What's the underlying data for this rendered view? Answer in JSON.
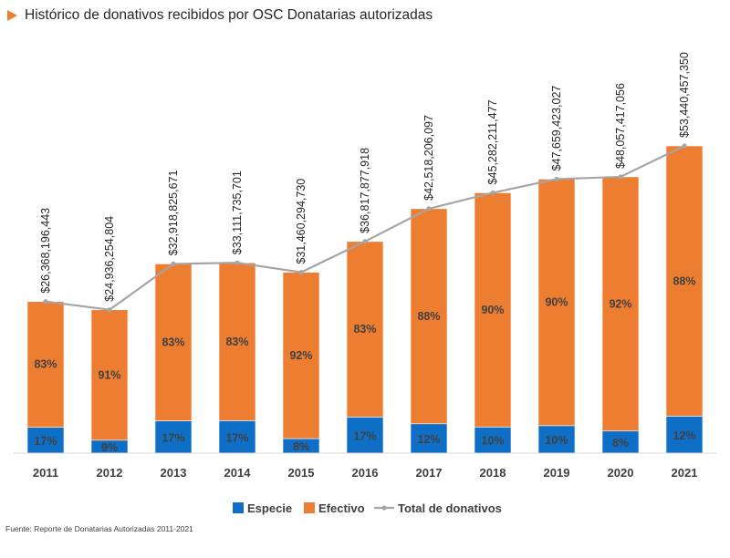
{
  "title": "Histórico de donativos recibidos por OSC Donatarias autorizadas",
  "source": "Fuente: Reporte de Donatarias Autorizadas 2011-2021",
  "colors": {
    "especie": "#0F6FC6",
    "efectivo": "#ED7D31",
    "total": "#A5A5A5",
    "marker": "#ED7D31"
  },
  "chart_data": {
    "type": "bar",
    "stacked": true,
    "title": "Histórico de donativos recibidos por OSC Donatarias autorizadas",
    "categories": [
      "2011",
      "2012",
      "2013",
      "2014",
      "2015",
      "2016",
      "2017",
      "2018",
      "2019",
      "2020",
      "2021"
    ],
    "series": [
      {
        "name": "Especie",
        "type": "bar",
        "values": [
          17,
          9,
          17,
          17,
          8,
          17,
          12,
          10,
          10,
          8,
          12
        ],
        "labels": [
          "17%",
          "9%",
          "17%",
          "17%",
          "8%",
          "17%",
          "12%",
          "10%",
          "10%",
          "8%",
          "12%"
        ]
      },
      {
        "name": "Efectivo",
        "type": "bar",
        "values": [
          83,
          91,
          83,
          83,
          92,
          83,
          88,
          90,
          90,
          92,
          88
        ],
        "labels": [
          "83%",
          "91%",
          "83%",
          "83%",
          "92%",
          "83%",
          "88%",
          "90%",
          "90%",
          "92%",
          "88%"
        ]
      },
      {
        "name": "Total de donativos",
        "type": "line",
        "values": [
          26368196443,
          24936254804,
          32918825671,
          33111735701,
          31460294730,
          36817877918,
          42518206097,
          45282211477,
          47659423027,
          48057417056,
          53440457350
        ],
        "labels": [
          "$26,368,196,443",
          "$24,936,254,804",
          "$32,918,825,671",
          "$33,111,735,701",
          "$31,460,294,730",
          "$36,817,877,918",
          "$42,518,206,097",
          "$45,282,211,477",
          "$47,659,423,027",
          "$48,057,417,056",
          "$53,440,457,350"
        ]
      }
    ],
    "legend": [
      "Especie",
      "Efectivo",
      "Total de donativos"
    ],
    "legend_position": "bottom",
    "grid": false,
    "ylim": [
      0,
      53440457350
    ]
  }
}
